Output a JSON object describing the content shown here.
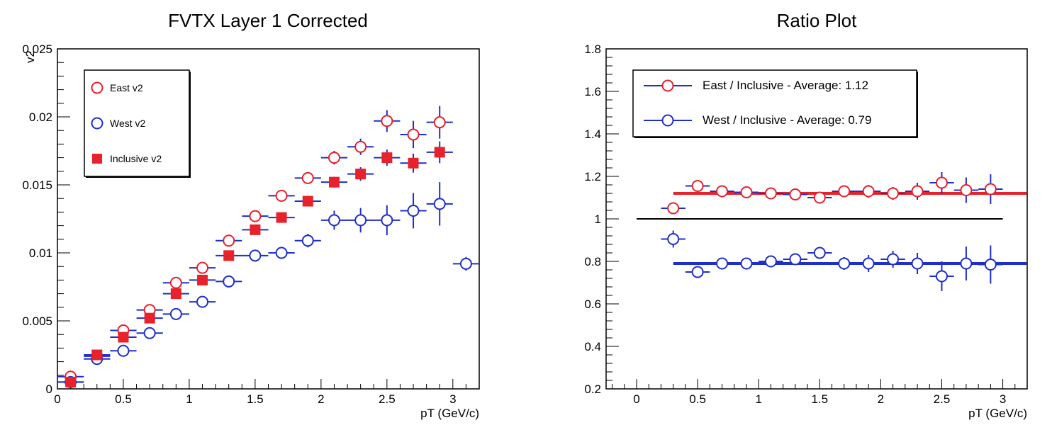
{
  "chart_data": [
    {
      "type": "scatter",
      "title": "FVTX Layer 1 Corrected",
      "xlabel": "pT (GeV/c)",
      "ylabel": "v2",
      "xlim": [
        0,
        3.2
      ],
      "ylim": [
        0,
        0.025
      ],
      "x_ticks": [
        "0",
        "0.5",
        "1",
        "1.5",
        "2",
        "2.5",
        "3"
      ],
      "y_ticks": [
        "0",
        "0.005",
        "0.01",
        "0.015",
        "0.02",
        "0.025"
      ],
      "x_tick_values": [
        0,
        0.5,
        1,
        1.5,
        2,
        2.5,
        3
      ],
      "y_tick_values": [
        0,
        0.005,
        0.01,
        0.015,
        0.02,
        0.025
      ],
      "legend_position": "top-left",
      "series": [
        {
          "name": "East v2",
          "color": "#e8212b",
          "marker": "open-circle",
          "x": [
            0.1,
            0.3,
            0.5,
            0.7,
            0.9,
            1.1,
            1.3,
            1.5,
            1.7,
            1.9,
            2.1,
            2.3,
            2.5,
            2.7,
            2.9
          ],
          "y": [
            0.0009,
            0.0024,
            0.0043,
            0.0058,
            0.0078,
            0.0089,
            0.0109,
            0.0127,
            0.0142,
            0.0155,
            0.017,
            0.0178,
            0.0197,
            0.0187,
            0.0196
          ],
          "yerr": [
            0.0002,
            0.0002,
            0.0002,
            0.0002,
            0.0003,
            0.0003,
            0.0003,
            0.0004,
            0.0004,
            0.0004,
            0.0005,
            0.0006,
            0.0008,
            0.001,
            0.0012
          ]
        },
        {
          "name": "West v2",
          "color": "#1f2fc8",
          "marker": "open-circle",
          "x": [
            0.1,
            0.3,
            0.5,
            0.7,
            0.9,
            1.1,
            1.3,
            1.5,
            1.7,
            1.9,
            2.1,
            2.3,
            2.5,
            2.7,
            2.9,
            3.1
          ],
          "y": [
            0.0005,
            0.0022,
            0.0028,
            0.0041,
            0.0055,
            0.0064,
            0.0079,
            0.0098,
            0.01,
            0.0109,
            0.0124,
            0.0124,
            0.0124,
            0.0131,
            0.0136,
            0.0092
          ],
          "yerr": [
            0.0002,
            0.0002,
            0.0002,
            0.0003,
            0.0003,
            0.0003,
            0.0003,
            0.0003,
            0.0004,
            0.0005,
            0.0007,
            0.0009,
            0.0011,
            0.0013,
            0.0016,
            0.0005
          ]
        },
        {
          "name": "Inclusive v2",
          "color": "#e8212b",
          "marker": "filled-square",
          "x": [
            0.1,
            0.3,
            0.5,
            0.7,
            0.9,
            1.1,
            1.3,
            1.5,
            1.7,
            1.9,
            2.1,
            2.3,
            2.5,
            2.7,
            2.9
          ],
          "y": [
            0.0005,
            0.0025,
            0.0038,
            0.0052,
            0.007,
            0.008,
            0.0098,
            0.0117,
            0.0126,
            0.0138,
            0.0152,
            0.0158,
            0.017,
            0.0166,
            0.0174
          ],
          "yerr": [
            0.0001,
            0.0001,
            0.0001,
            0.0002,
            0.0002,
            0.0002,
            0.0002,
            0.0003,
            0.0003,
            0.0003,
            0.0004,
            0.0005,
            0.0006,
            0.0007,
            0.0008
          ]
        }
      ]
    },
    {
      "type": "scatter",
      "title": "Ratio Plot",
      "xlabel": "pT (GeV/c)",
      "ylabel": "",
      "xlim": [
        -0.25,
        3.2
      ],
      "ylim": [
        0.2,
        1.8
      ],
      "x_ticks": [
        "0",
        "0.5",
        "1",
        "1.5",
        "2",
        "2.5",
        "3"
      ],
      "y_ticks": [
        "0.2",
        "0.4",
        "0.6",
        "0.8",
        "1",
        "1.2",
        "1.4",
        "1.6",
        "1.8"
      ],
      "x_tick_values": [
        0,
        0.5,
        1,
        1.5,
        2,
        2.5,
        3
      ],
      "y_tick_values": [
        0.2,
        0.4,
        0.6,
        0.8,
        1.0,
        1.2,
        1.4,
        1.6,
        1.8
      ],
      "legend_position": "top-left",
      "reference_line": {
        "y": 1.0,
        "x": [
          0,
          3.0
        ],
        "color": "#000000"
      },
      "series": [
        {
          "name": "East / Inclusive - Average: 1.12",
          "color": "#e8212b",
          "marker": "open-circle",
          "x": [
            0.3,
            0.5,
            0.7,
            0.9,
            1.1,
            1.3,
            1.5,
            1.7,
            1.9,
            2.1,
            2.3,
            2.5,
            2.7,
            2.9
          ],
          "y": [
            1.05,
            1.155,
            1.13,
            1.125,
            1.12,
            1.115,
            1.1,
            1.13,
            1.13,
            1.12,
            1.13,
            1.17,
            1.135,
            1.14
          ],
          "yerr": [
            0.02,
            0.015,
            0.015,
            0.015,
            0.015,
            0.02,
            0.02,
            0.025,
            0.03,
            0.03,
            0.04,
            0.05,
            0.06,
            0.07
          ],
          "fit": {
            "y": 1.12,
            "x": [
              0.3,
              3.2
            ]
          }
        },
        {
          "name": "West / Inclusive - Average: 0.79",
          "color": "#1f2fc8",
          "marker": "open-circle",
          "x": [
            0.3,
            0.5,
            0.7,
            0.9,
            1.1,
            1.3,
            1.5,
            1.7,
            1.9,
            2.1,
            2.3,
            2.5,
            2.7,
            2.9
          ],
          "y": [
            0.905,
            0.75,
            0.79,
            0.79,
            0.8,
            0.81,
            0.84,
            0.79,
            0.79,
            0.81,
            0.79,
            0.73,
            0.79,
            0.785
          ],
          "yerr": [
            0.04,
            0.02,
            0.015,
            0.015,
            0.02,
            0.025,
            0.025,
            0.03,
            0.04,
            0.04,
            0.05,
            0.07,
            0.08,
            0.09
          ],
          "fit": {
            "y": 0.79,
            "x": [
              0.3,
              3.2
            ]
          }
        }
      ]
    }
  ]
}
